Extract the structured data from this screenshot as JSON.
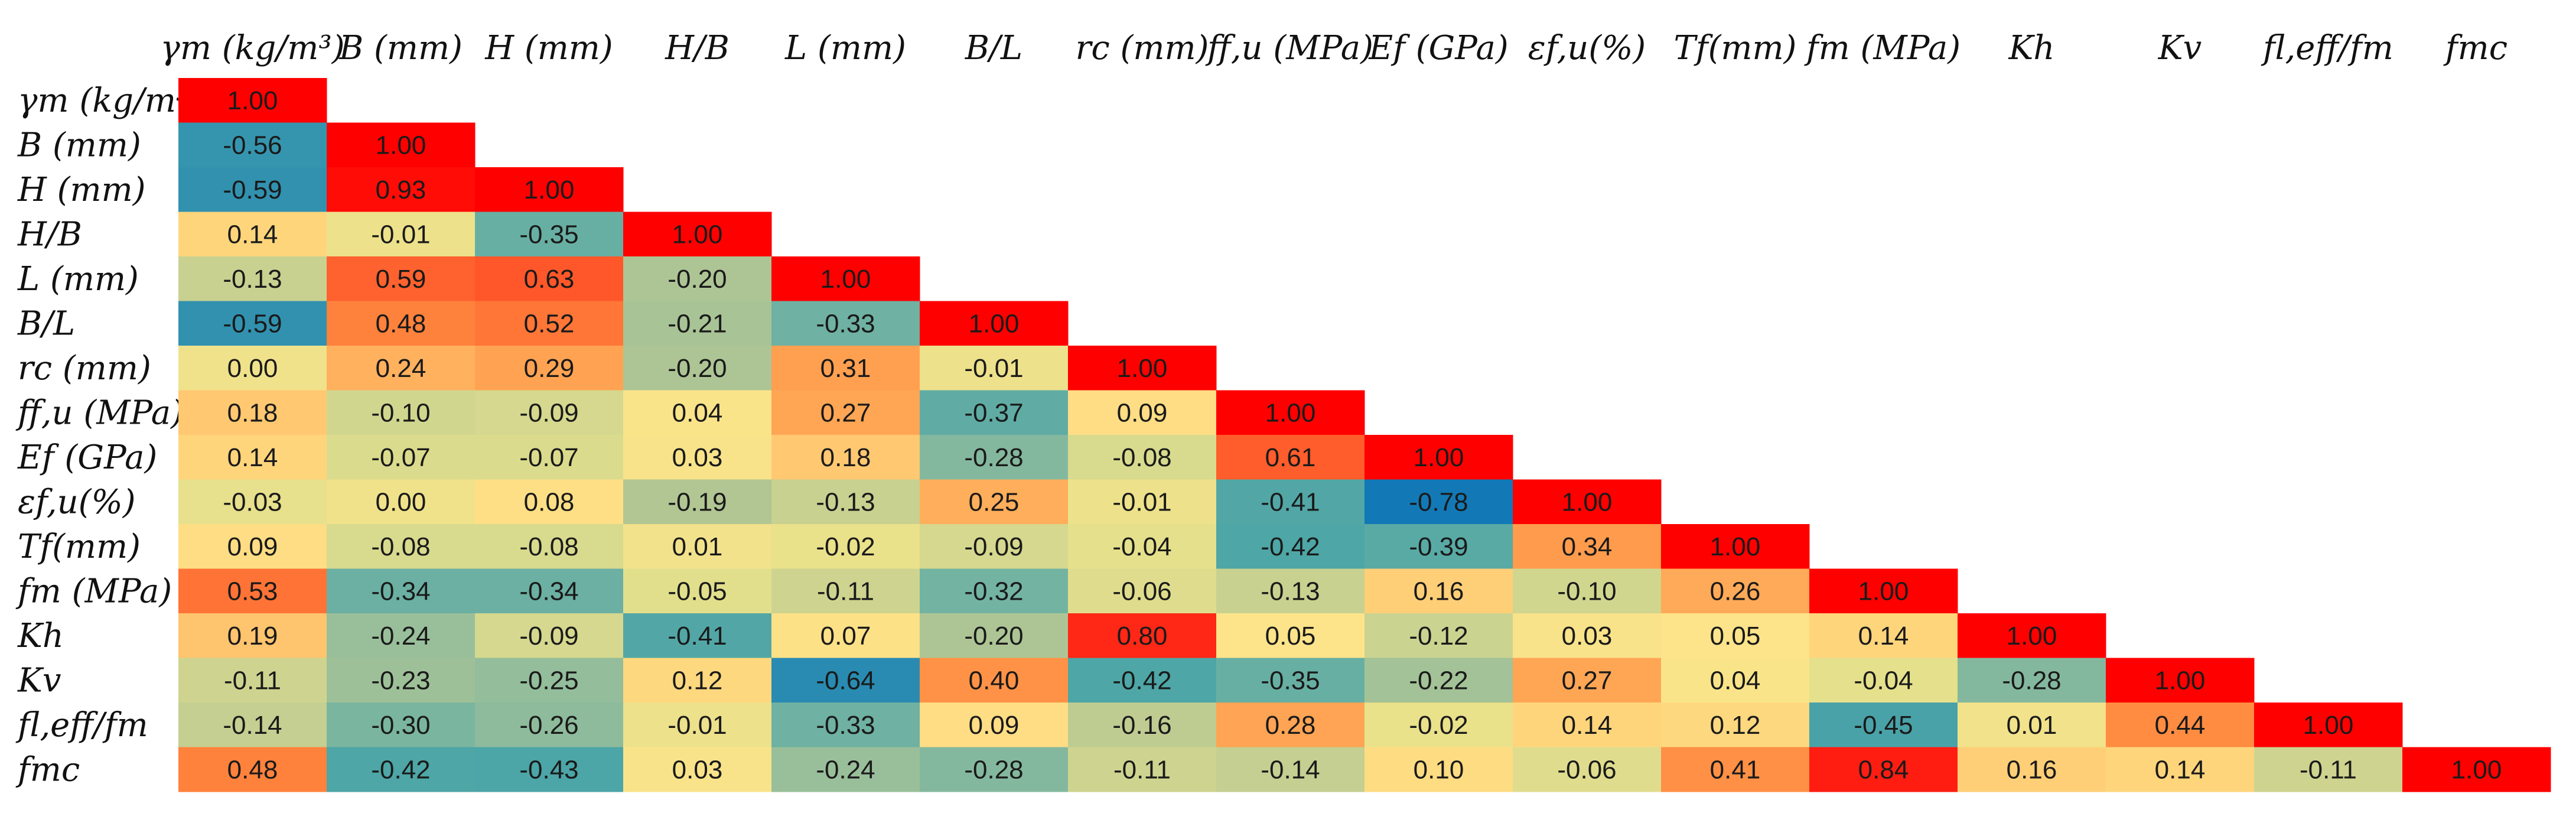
{
  "chart_data": {
    "type": "heatmap",
    "title": "",
    "variables": [
      "γm (kg/m³)",
      "B (mm)",
      "H (mm)",
      "H/B",
      "L (mm)",
      "B/L",
      "rc (mm)",
      "ff,u (MPa)",
      "Ef (GPa)",
      "εf,u(%)",
      "Tf(mm)",
      "fm (MPa)",
      "Kh",
      "Kv",
      "fl,eff/fm",
      "fmc"
    ],
    "matrix": [
      [
        1.0
      ],
      [
        -0.56,
        1.0
      ],
      [
        -0.59,
        0.93,
        1.0
      ],
      [
        0.14,
        -0.01,
        -0.35,
        1.0
      ],
      [
        -0.13,
        0.59,
        0.63,
        -0.2,
        1.0
      ],
      [
        -0.59,
        0.48,
        0.52,
        -0.21,
        -0.33,
        1.0
      ],
      [
        0.0,
        0.24,
        0.29,
        -0.2,
        0.31,
        -0.01,
        1.0
      ],
      [
        0.18,
        -0.1,
        -0.09,
        0.04,
        0.27,
        -0.37,
        0.09,
        1.0
      ],
      [
        0.14,
        -0.07,
        -0.07,
        0.03,
        0.18,
        -0.28,
        -0.08,
        0.61,
        1.0
      ],
      [
        -0.03,
        0.0,
        0.08,
        -0.19,
        -0.13,
        0.25,
        -0.01,
        -0.41,
        -0.78,
        1.0
      ],
      [
        0.09,
        -0.08,
        -0.08,
        0.01,
        -0.02,
        -0.09,
        -0.04,
        -0.42,
        -0.39,
        0.34,
        1.0
      ],
      [
        0.53,
        -0.34,
        -0.34,
        -0.05,
        -0.11,
        -0.32,
        -0.06,
        -0.13,
        0.16,
        -0.1,
        0.26,
        1.0
      ],
      [
        0.19,
        -0.24,
        -0.09,
        -0.41,
        0.07,
        -0.2,
        0.8,
        0.05,
        -0.12,
        0.03,
        0.05,
        0.14,
        1.0
      ],
      [
        -0.11,
        -0.23,
        -0.25,
        0.12,
        -0.64,
        0.4,
        -0.42,
        -0.35,
        -0.22,
        0.27,
        0.04,
        -0.04,
        -0.28,
        1.0
      ],
      [
        -0.14,
        -0.3,
        -0.26,
        -0.01,
        -0.33,
        0.09,
        -0.16,
        0.28,
        -0.02,
        0.14,
        0.12,
        -0.45,
        0.01,
        0.44,
        1.0
      ],
      [
        0.48,
        -0.42,
        -0.43,
        0.03,
        -0.24,
        -0.28,
        -0.11,
        -0.14,
        0.1,
        -0.06,
        0.41,
        0.84,
        0.16,
        0.14,
        -0.11,
        1.0
      ]
    ],
    "value_range": [
      -1,
      1
    ],
    "lower_triangle": true,
    "color_scale": {
      "low": "#1378b8",
      "mid": "#ffe88a",
      "high": "#ff0000"
    }
  }
}
